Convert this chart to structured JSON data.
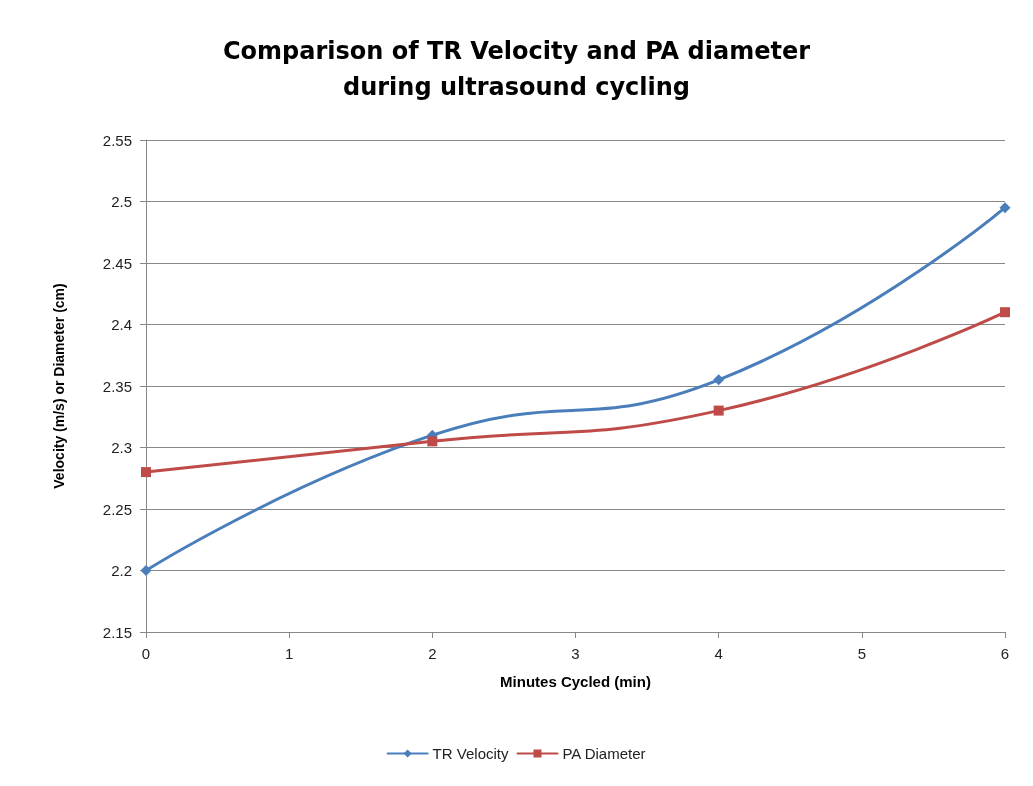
{
  "chart_data": {
    "type": "line",
    "title": "Comparison of TR Velocity and PA diameter\nduring ultrasound cycling",
    "xlabel": "Minutes Cycled (min)",
    "ylabel": "Velocity (m/s) or Diameter (cm)",
    "x": [
      0,
      2,
      4,
      6
    ],
    "series": [
      {
        "name": "TR Velocity",
        "color": "#4a7ebb",
        "marker": "diamond",
        "values": [
          2.2,
          2.31,
          2.355,
          2.495
        ]
      },
      {
        "name": "PA Diameter",
        "color": "#be4b48",
        "marker": "square",
        "values": [
          2.28,
          2.305,
          2.33,
          2.41
        ]
      }
    ],
    "xlim": [
      0,
      6
    ],
    "xticks": [
      0,
      1,
      2,
      3,
      4,
      5,
      6
    ],
    "ylim": [
      2.15,
      2.55
    ],
    "yticks": [
      2.15,
      2.2,
      2.25,
      2.3,
      2.35,
      2.4,
      2.45,
      2.5,
      2.55
    ],
    "grid": "y",
    "legend": "bottom",
    "line_style": "solid"
  }
}
